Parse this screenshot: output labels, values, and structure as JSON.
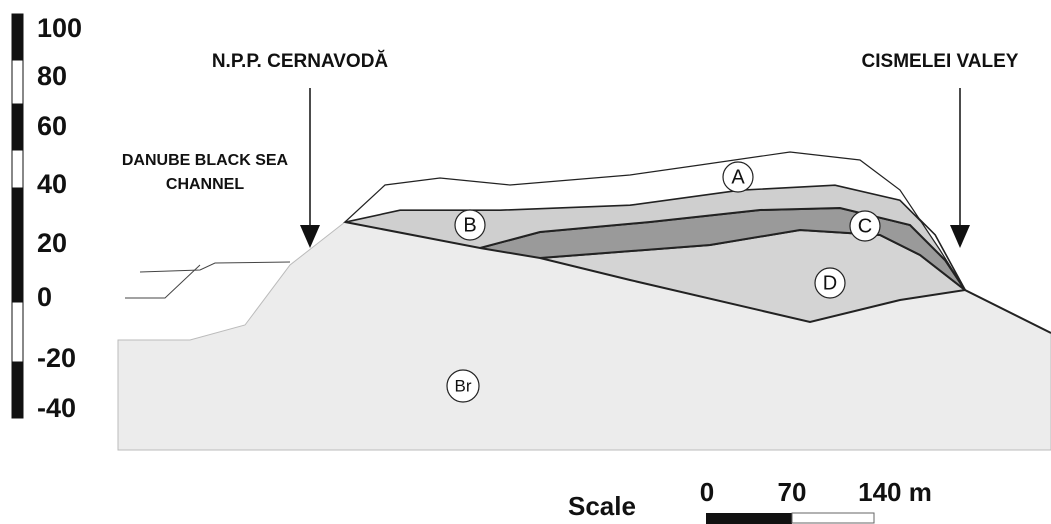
{
  "elevation_scale": {
    "labels": [
      "100",
      "80",
      "60",
      "40",
      "20",
      "0",
      "-20",
      "-40"
    ]
  },
  "annotations": {
    "npp": "N.P.P. CERNAVODĂ",
    "valley": "CISMELEI VALEY",
    "channel": [
      "DANUBE BLACK SEA",
      "CHANNEL"
    ]
  },
  "layers": {
    "a": "A",
    "b": "B",
    "c": "C",
    "d": "D",
    "br": "Br"
  },
  "scale_bar": {
    "title": "Scale",
    "labels": [
      "0",
      "70",
      "140 m"
    ]
  }
}
